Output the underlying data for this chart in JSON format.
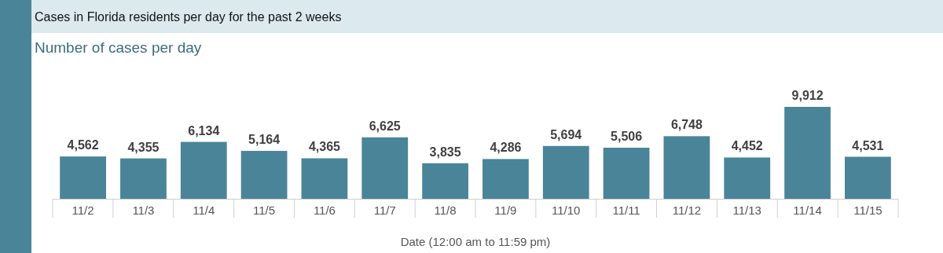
{
  "chart_data": {
    "type": "bar",
    "title": "Cases in Florida residents per day for the past 2 weeks",
    "subtitle": "Number of cases per day",
    "xlabel": "Date (12:00 am to 11:59 pm)",
    "categories": [
      "11/2",
      "11/3",
      "11/4",
      "11/5",
      "11/6",
      "11/7",
      "11/8",
      "11/9",
      "11/10",
      "11/11",
      "11/12",
      "11/13",
      "11/14",
      "11/15"
    ],
    "values": [
      4562,
      4355,
      6134,
      5164,
      4365,
      6625,
      3835,
      4286,
      5694,
      5506,
      6748,
      4452,
      9912,
      4531
    ],
    "value_labels": [
      "4,562",
      "4,355",
      "6,134",
      "5,164",
      "4,365",
      "6,625",
      "3,835",
      "4,286",
      "5,694",
      "5,506",
      "6,748",
      "4,452",
      "9,912",
      "4,531"
    ],
    "color": "#4a8499"
  }
}
